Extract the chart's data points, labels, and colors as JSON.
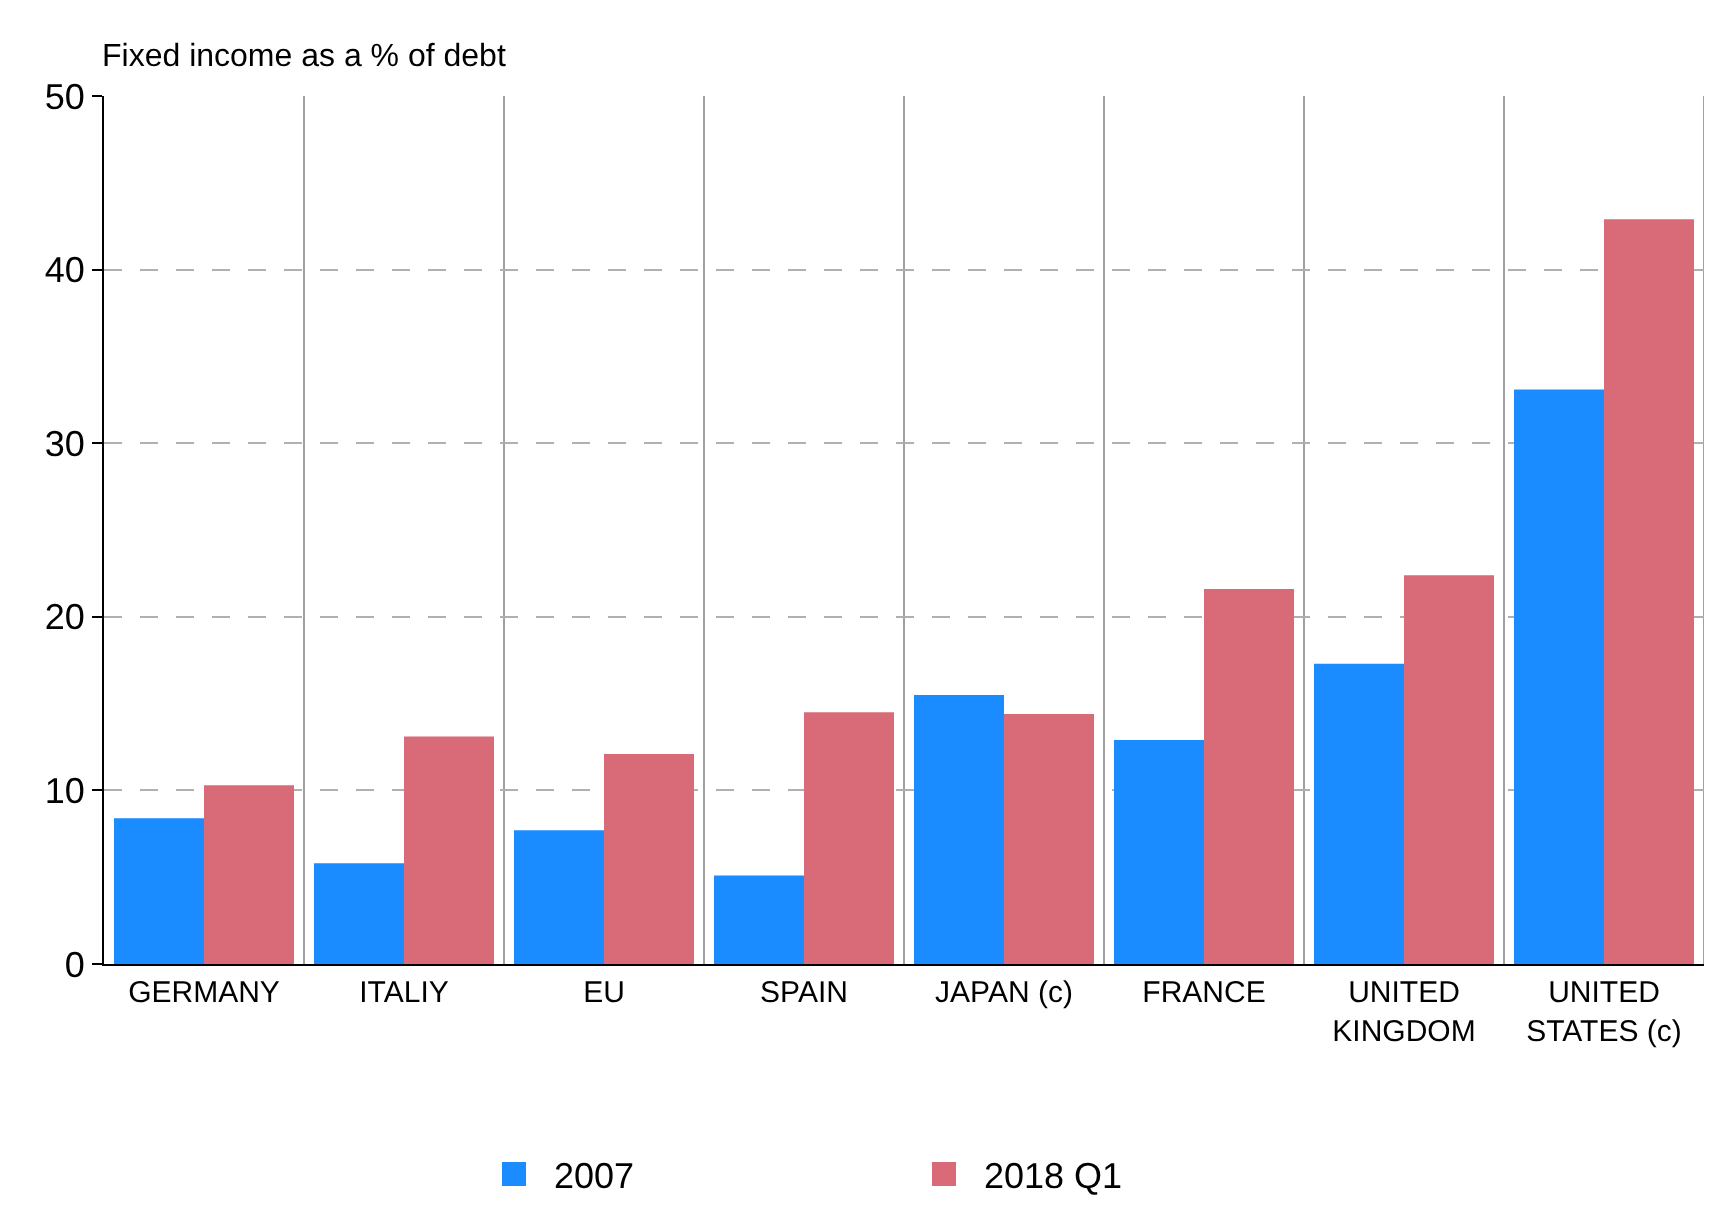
{
  "chart_data": {
    "type": "bar",
    "ylabel": "Fixed income as a % of debt",
    "categories": [
      "GERMANY",
      "ITALIY",
      "EU",
      "SPAIN",
      "JAPAN (c)",
      "FRANCE",
      "UNITED\nKINGDOM",
      "UNITED\nSTATES (c)"
    ],
    "series": [
      {
        "name": "2007",
        "color": "#1a8cff",
        "values": [
          8.4,
          5.8,
          7.7,
          5.1,
          15.5,
          12.9,
          17.3,
          33.1
        ]
      },
      {
        "name": "2018 Q1",
        "color": "#d96b78",
        "values": [
          10.3,
          13.1,
          12.1,
          14.5,
          14.4,
          21.6,
          22.4,
          42.9
        ]
      }
    ],
    "ylim": [
      0,
      50
    ],
    "yticks": [
      0,
      10,
      20,
      30,
      40,
      50
    ],
    "grid": true,
    "legend": "bottom"
  }
}
